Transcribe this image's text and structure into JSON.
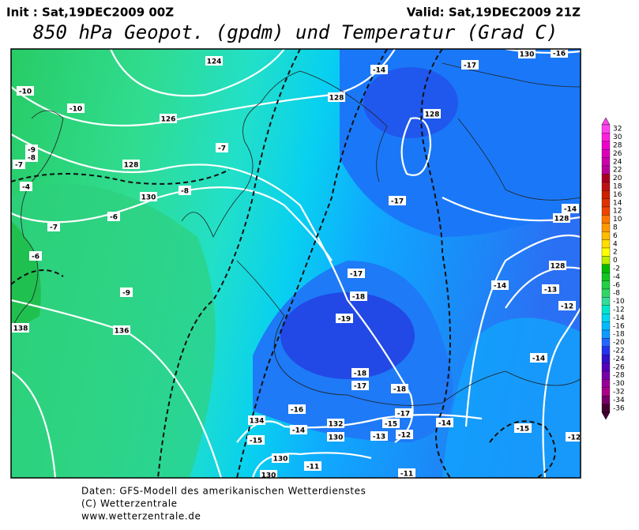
{
  "header": {
    "init": "Init : Sat,19DEC2009 00Z",
    "valid": "Valid: Sat,19DEC2009 21Z",
    "title": "850 hPa Geopot. (gpdm) und Temperatur (Grad C)"
  },
  "map": {
    "temperature_labels": [
      -17,
      -14,
      -10,
      -10,
      -7,
      -9,
      -8,
      -7,
      -4,
      -8,
      -6,
      -7,
      -6,
      -9,
      -17,
      -17,
      -18,
      -19,
      -18,
      -17,
      -18,
      -16,
      -17,
      -15,
      -14,
      -15,
      -13,
      -12,
      -14,
      -15,
      -14,
      -13,
      -12,
      -14,
      -14,
      -11,
      -11,
      -16,
      -12
    ],
    "geopotential_labels": [
      124,
      128,
      126,
      128,
      128,
      130,
      128,
      128,
      136,
      138,
      134,
      132,
      130,
      130,
      130,
      130
    ]
  },
  "colorbar": {
    "labels": [
      32,
      30,
      28,
      26,
      24,
      22,
      20,
      18,
      16,
      14,
      12,
      10,
      8,
      6,
      4,
      2,
      0,
      -2,
      -4,
      -6,
      -8,
      -10,
      -12,
      -14,
      -16,
      -18,
      -20,
      -22,
      -24,
      -26,
      -28,
      -30,
      -32,
      -34,
      -36
    ],
    "colors": [
      "#ff44ee",
      "#ff22dd",
      "#ee00cc",
      "#dd00bb",
      "#cc00aa",
      "#bb0099",
      "#aa0022",
      "#bb1111",
      "#cc2200",
      "#dd3300",
      "#ee4400",
      "#ff7700",
      "#ff9900",
      "#ffbb00",
      "#ffdd00",
      "#ffff00",
      "#bbee00",
      "#00bb00",
      "#11c622",
      "#22d044",
      "#2ed866",
      "#33dd99",
      "#00e5cc",
      "#00d8ee",
      "#00bbff",
      "#1199ff",
      "#2266ff",
      "#2233ee",
      "#3311cc",
      "#5500bb",
      "#7700aa",
      "#990099",
      "#aa0088",
      "#770066",
      "#440033"
    ]
  },
  "footer": {
    "line1": "Daten: GFS-Modell des amerikanischen Wetterdienstes",
    "line2": "(C) Wetterzentrale",
    "line3": "www.wetterzentrale.de"
  }
}
